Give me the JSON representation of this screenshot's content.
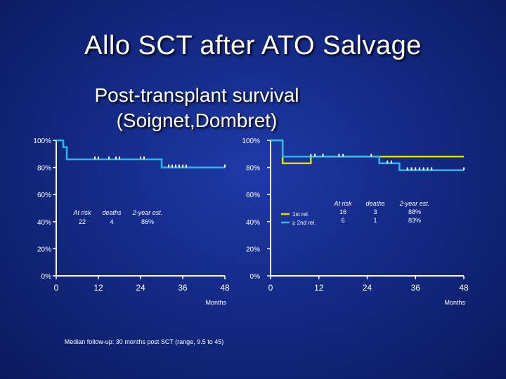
{
  "slide": {
    "title": "Allo SCT after ATO Salvage",
    "subtitle_line1": "Post-transplant survival",
    "subtitle_line2": "(Soignet,Dombret)",
    "footnote": "Median follow-up: 30 months post SCT (range, 9.5 to 45)"
  },
  "colors": {
    "background": "#142a86",
    "curve_cyan": "#2fb6e8",
    "curve_yellow": "#e6dc00",
    "axis": "#ffffff"
  },
  "chart_data": [
    {
      "type": "line",
      "panel": "left",
      "xlabel": "Months",
      "x_ticks": [
        "0",
        "12",
        "24",
        "36",
        "48"
      ],
      "y_ticks": [
        "0%",
        "20%",
        "40%",
        "60%",
        "80%",
        "100%"
      ],
      "xlim": [
        0,
        48
      ],
      "ylim": [
        0,
        100
      ],
      "series": [
        {
          "color": "#2fb6e8",
          "steps": [
            [
              0,
              100
            ],
            [
              2,
              100
            ],
            [
              2,
              95
            ],
            [
              3,
              95
            ],
            [
              3,
              86
            ],
            [
              30,
              86
            ],
            [
              30,
              80
            ],
            [
              48,
              80
            ]
          ],
          "censor_x": [
            11,
            12,
            15,
            17,
            18,
            24,
            25,
            32,
            33,
            34,
            35,
            36,
            37,
            48
          ]
        }
      ],
      "table": {
        "headers": [
          "At risk",
          "deaths",
          "2-year est."
        ],
        "rows": [
          [
            "22",
            "4",
            "86%"
          ]
        ]
      }
    },
    {
      "type": "line",
      "panel": "right",
      "xlabel": "Months",
      "x_ticks": [
        "0",
        "12",
        "24",
        "36",
        "48"
      ],
      "y_ticks": [
        "0%",
        "20%",
        "40%",
        "60%",
        "80%",
        "100%"
      ],
      "xlim": [
        0,
        48
      ],
      "ylim": [
        0,
        100
      ],
      "series": [
        {
          "name": "1st rel.",
          "color": "#e6dc00",
          "steps": [
            [
              0,
              100
            ],
            [
              3,
              100
            ],
            [
              3,
              83
            ],
            [
              10,
              83
            ],
            [
              10,
              88
            ],
            [
              48,
              88
            ]
          ],
          "censor_x": []
        },
        {
          "name": "≥ 2nd rel.",
          "color": "#2fb6e8",
          "steps": [
            [
              0,
              100
            ],
            [
              3,
              100
            ],
            [
              3,
              88
            ],
            [
              27,
              88
            ],
            [
              27,
              83
            ],
            [
              32,
              83
            ],
            [
              32,
              78
            ],
            [
              48,
              78
            ]
          ],
          "censor_x": [
            10,
            11,
            13,
            17,
            18,
            25,
            29,
            30,
            34,
            35,
            36,
            37,
            38,
            39,
            40,
            48
          ]
        }
      ],
      "table": {
        "headers": [
          "At risk",
          "deaths",
          "2-year est."
        ],
        "rows": [
          [
            "16",
            "3",
            "88%"
          ],
          [
            "6",
            "1",
            "83%"
          ]
        ]
      }
    }
  ]
}
